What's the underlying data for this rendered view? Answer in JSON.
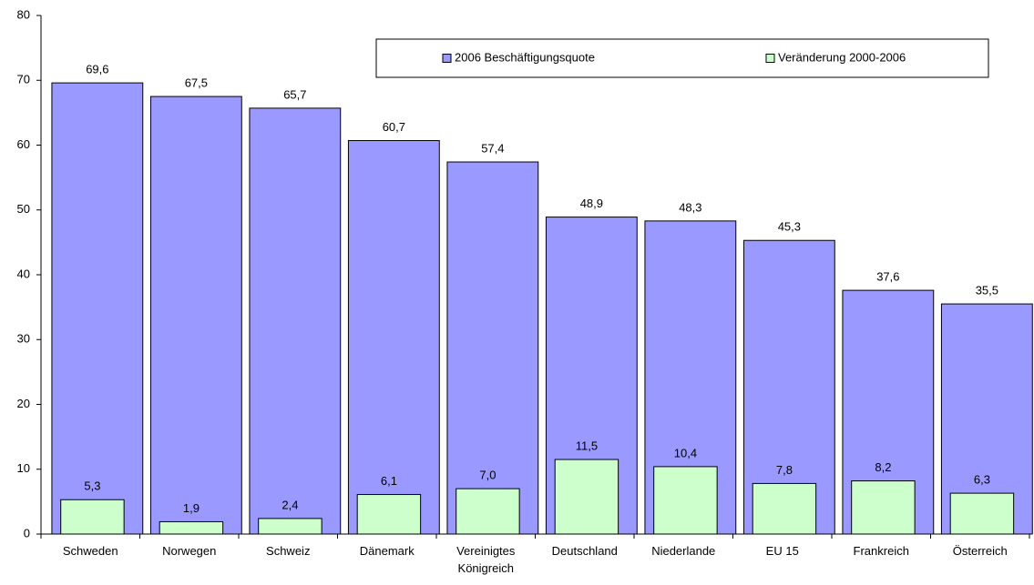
{
  "chart_data": {
    "type": "bar",
    "categories": [
      "Schweden",
      "Norwegen",
      "Schweiz",
      "Dänemark",
      "Vereinigtes Königreich",
      "Deutschland",
      "Niederlande",
      "EU 15",
      "Frankreich",
      "Österreich"
    ],
    "series": [
      {
        "name": "2006 Beschäftigungsquote",
        "color": "#9999ff",
        "values": [
          69.6,
          67.5,
          65.7,
          60.7,
          57.4,
          48.9,
          48.3,
          45.3,
          37.6,
          35.5
        ],
        "value_labels": [
          "69,6",
          "67,5",
          "65,7",
          "60,7",
          "57,4",
          "48,9",
          "48,3",
          "45,3",
          "37,6",
          "35,5"
        ]
      },
      {
        "name": "Veränderung 2000-2006",
        "color": "#ccffcc",
        "values": [
          5.3,
          1.9,
          2.4,
          6.1,
          7.0,
          11.5,
          10.4,
          7.8,
          8.2,
          6.3
        ],
        "value_labels": [
          "5,3",
          "1,9",
          "2,4",
          "6,1",
          "7,0",
          "11,5",
          "10,4",
          "7,8",
          "8,2",
          "6,3"
        ]
      }
    ],
    "ylim": [
      0,
      80
    ],
    "yticks": [
      0,
      10,
      20,
      30,
      40,
      50,
      60,
      70,
      80
    ],
    "grid": false,
    "legend": "top-right"
  }
}
